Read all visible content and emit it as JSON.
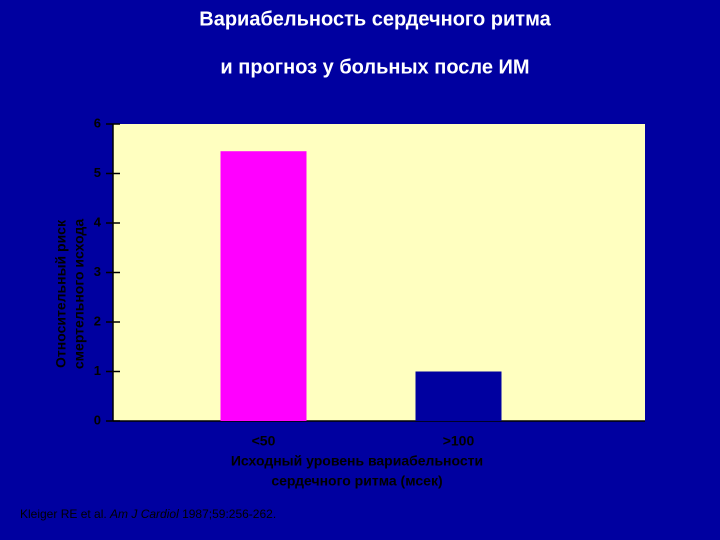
{
  "chart_data": {
    "type": "bar",
    "title": [
      "Вариабельность сердечного ритма",
      "и прогноз у больных после ИМ"
    ],
    "y_label": [
      "Относительный риск",
      "смертельного исхода"
    ],
    "x_label": [
      "Исходный уровень вариабельности",
      "сердечного ритма (мсек)"
    ],
    "categories": [
      "<50",
      ">100"
    ],
    "values": [
      5.45,
      1.0
    ],
    "colors": [
      "#ff00ff",
      "#0000a0"
    ],
    "ylim": [
      0,
      6
    ],
    "yticks": [
      0,
      1,
      2,
      3,
      4,
      5,
      6
    ],
    "footnote": [
      "Kleiger RE et al. ",
      "Am J Cardiol",
      " 1987;59:256-262."
    ]
  }
}
